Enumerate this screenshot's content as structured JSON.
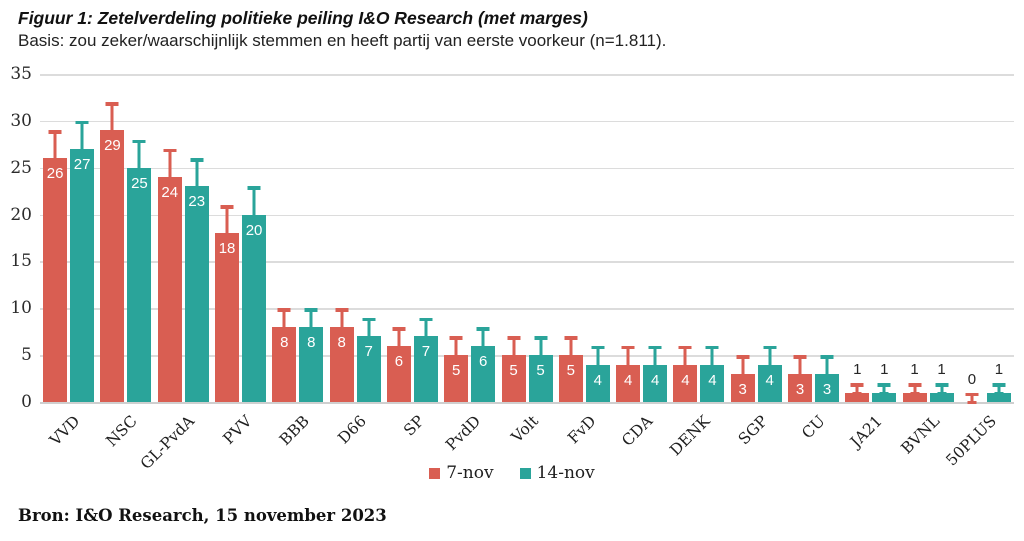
{
  "header": {
    "title": "Figuur 1: Zetelverdeling politieke peiling I&O Research (met marges)",
    "subtitle": "Basis: zou zeker/waarschijnlijk stemmen en heeft partij van eerste voorkeur (n=1.811)."
  },
  "footer": {
    "source": "Bron: I&O Research, 15 november 2023"
  },
  "colors": {
    "series_7nov": "#D95E52",
    "series_14nov": "#2AA49A",
    "gridline": "#DCDCDC",
    "text_dark": "#262626",
    "label_in_bar": "#FFFFFF"
  },
  "chart_data": {
    "type": "bar",
    "title": "Figuur 1: Zetelverdeling politieke peiling I&O Research (met marges)",
    "subtitle": "Basis: zou zeker/waarschijnlijk stemmen en heeft partij van eerste voorkeur (n=1.811).",
    "source": "Bron: I&O Research, 15 november 2023",
    "categories": [
      "VVD",
      "NSC",
      "GL-PvdA",
      "PVV",
      "BBB",
      "D66",
      "SP",
      "PvdD",
      "Volt",
      "FvD",
      "CDA",
      "DENK",
      "SGP",
      "CU",
      "JA21",
      "BVNL",
      "50PLUS"
    ],
    "series": [
      {
        "name": "7-nov",
        "color": "#D95E52",
        "values": [
          26,
          29,
          24,
          18,
          8,
          8,
          6,
          5,
          5,
          5,
          4,
          4,
          3,
          3,
          1,
          1,
          0
        ],
        "error_upper": [
          29,
          32,
          27,
          21,
          10,
          10,
          8,
          7,
          7,
          7,
          6,
          6,
          5,
          5,
          2,
          2,
          1
        ]
      },
      {
        "name": "14-nov",
        "color": "#2AA49A",
        "values": [
          27,
          25,
          23,
          20,
          8,
          7,
          7,
          6,
          5,
          4,
          4,
          4,
          4,
          3,
          1,
          1,
          1
        ],
        "error_upper": [
          30,
          28,
          26,
          23,
          10,
          9,
          9,
          8,
          7,
          6,
          6,
          6,
          6,
          5,
          2,
          2,
          2
        ]
      }
    ],
    "ylabel": "",
    "xlabel": "",
    "ylim": [
      0,
      35
    ],
    "yticks": [
      0,
      5,
      10,
      15,
      20,
      25,
      30,
      35
    ],
    "grid": true,
    "legend_position": "bottom",
    "value_labels": "inside-top (white) for values >= 3, above error bar (dark) for values <= 1"
  }
}
